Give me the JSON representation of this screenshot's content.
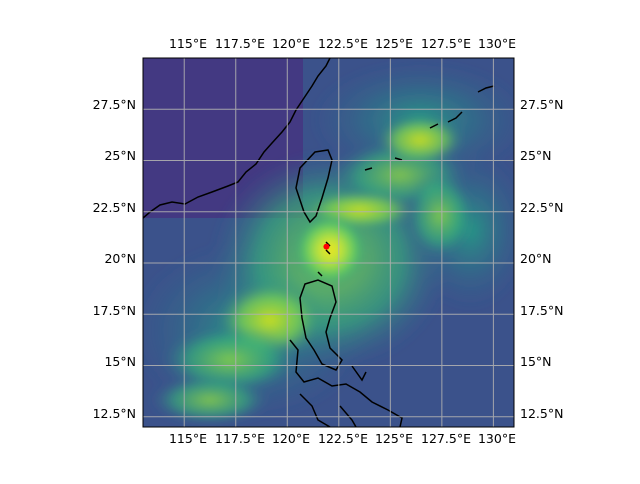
{
  "map": {
    "projection": "PlateCarree",
    "extent": {
      "lon_min": 113.0,
      "lon_max": 131.0,
      "lat_min": 12.0,
      "lat_max": 30.0
    },
    "gridlines": true,
    "top_lon_labels": [
      "115°E",
      "117.5°E",
      "120°E",
      "122.5°E",
      "125°E",
      "127.5°E",
      "130°E"
    ],
    "bottom_lon_labels": [
      "115°E",
      "117.5°E",
      "120°E",
      "122.5°E",
      "125°E",
      "127.5°E",
      "130°E"
    ],
    "left_lat_labels": [
      "27.5°N",
      "25°N",
      "22.5°N",
      "20°N",
      "17.5°N",
      "15°N",
      "12.5°N"
    ],
    "right_lat_labels": [
      "27.5°N",
      "25°N",
      "22.5°N",
      "20°N",
      "17.5°N",
      "15°N",
      "12.5°N"
    ],
    "lon_ticks": [
      115,
      117.5,
      120,
      122.5,
      125,
      127.5,
      130
    ],
    "lat_ticks": [
      27.5,
      25,
      22.5,
      20,
      17.5,
      15,
      12.5
    ],
    "colormap": "viridis",
    "center_marker": {
      "lon": 121.9,
      "lat": 20.8,
      "color": "#ff0000"
    },
    "coastline_color": "#000000",
    "grid_color": "#b0b0b0"
  }
}
